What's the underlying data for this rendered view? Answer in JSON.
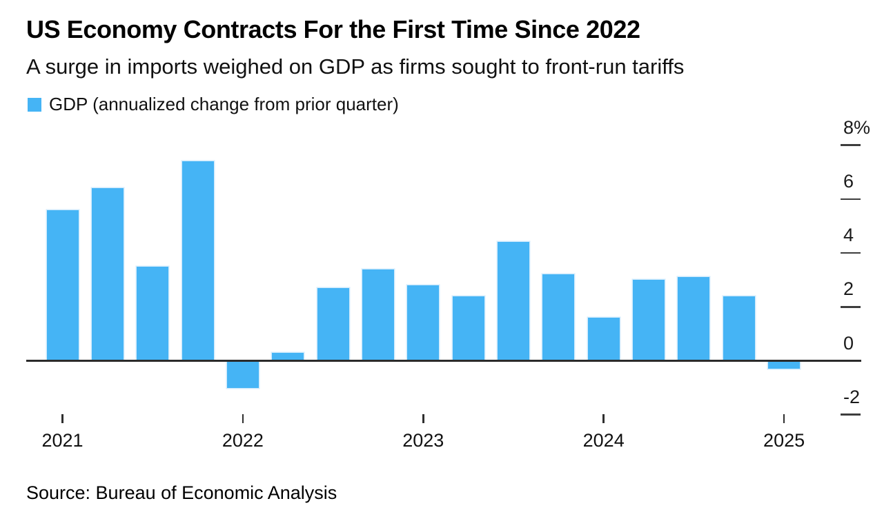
{
  "header": {
    "title": "US Economy Contracts For the First Time Since 2022",
    "subtitle": "A surge in imports weighed on GDP as firms sought to front-run tariffs"
  },
  "legend": {
    "label": "GDP (annualized change from prior quarter)",
    "swatch_color": "#45b4f5"
  },
  "source": "Source: Bureau of Economic Analysis",
  "chart_data": {
    "type": "bar",
    "title": "US Economy Contracts For the First Time Since 2022",
    "subtitle": "A surge in imports weighed on GDP as firms sought to front-run tariffs",
    "series_name": "GDP (annualized change from prior quarter)",
    "unit": "%",
    "x": [
      "2021 Q1",
      "2021 Q2",
      "2021 Q3",
      "2021 Q4",
      "2022 Q1",
      "2022 Q2",
      "2022 Q3",
      "2022 Q4",
      "2023 Q1",
      "2023 Q2",
      "2023 Q3",
      "2023 Q4",
      "2024 Q1",
      "2024 Q2",
      "2024 Q3",
      "2024 Q4",
      "2025 Q1"
    ],
    "values": [
      5.6,
      6.4,
      3.5,
      7.4,
      -1.0,
      0.3,
      2.7,
      3.4,
      2.8,
      2.4,
      4.4,
      3.2,
      1.6,
      3.0,
      3.1,
      2.4,
      -0.3
    ],
    "x_tick_labels": [
      "2021",
      "2022",
      "2023",
      "2024",
      "2025"
    ],
    "x_tick_indices": [
      0,
      4,
      8,
      12,
      16
    ],
    "y_ticks": [
      8,
      6,
      4,
      2,
      0,
      -2
    ],
    "y_tick_labels": [
      "8%",
      "6",
      "4",
      "2",
      "0",
      "-2"
    ],
    "ylim": [
      -2.8,
      8.6
    ],
    "grid": false,
    "legend_position": "top-left",
    "bar_color": "#45b4f5",
    "axis_color": "#2b2b2b"
  }
}
